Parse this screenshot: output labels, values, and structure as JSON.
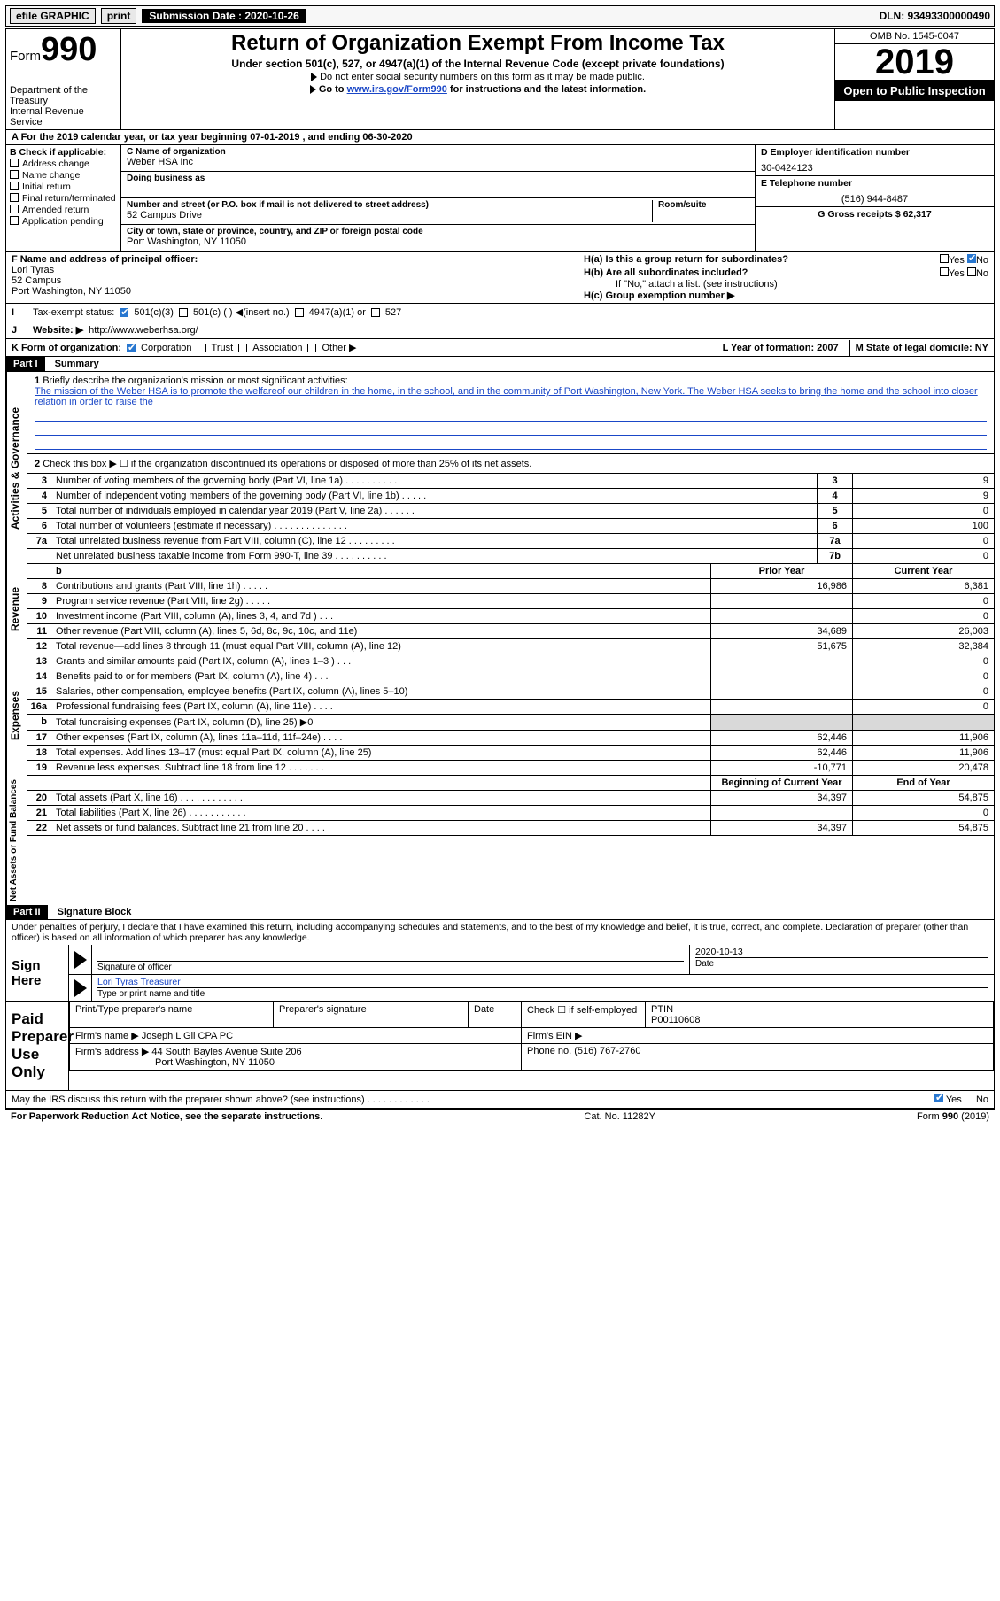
{
  "topbar": {
    "efile": "efile GRAPHIC",
    "print": "print",
    "sub_label": "Submission Date : 2020-10-26",
    "dln": "DLN: 93493300000490"
  },
  "header": {
    "form_label": "Form",
    "form_num": "990",
    "dept": "Department of the Treasury\nInternal Revenue Service",
    "title": "Return of Organization Exempt From Income Tax",
    "sub": "Under section 501(c), 527, or 4947(a)(1) of the Internal Revenue Code (except private foundations)",
    "line1": "Do not enter social security numbers on this form as it may be made public.",
    "line2_pre": "Go to ",
    "line2_link": "www.irs.gov/Form990",
    "line2_post": " for instructions and the latest information.",
    "omb": "OMB No. 1545-0047",
    "year": "2019",
    "inspect": "Open to Public Inspection"
  },
  "rowA": "A   For the 2019 calendar year, or tax year beginning 07-01-2019     , and ending 06-30-2020",
  "colB": {
    "title": "B Check if applicable:",
    "items": [
      "Address change",
      "Name change",
      "Initial return",
      "Final return/terminated",
      "Amended return",
      "Application pending"
    ]
  },
  "orgbox": {
    "c_label": "C Name of organization",
    "org": "Weber HSA Inc",
    "dba_label": "Doing business as",
    "addr_label": "Number and street (or P.O. box if mail is not delivered to street address)",
    "room_label": "Room/suite",
    "addr": "52 Campus Drive",
    "city_label": "City or town, state or province, country, and ZIP or foreign postal code",
    "city": "Port Washington, NY  11050"
  },
  "rightcol": {
    "d_label": "D Employer identification number",
    "ein": "30-0424123",
    "e_label": "E Telephone number",
    "phone": "(516) 944-8487",
    "g_label": "G Gross receipts $ 62,317"
  },
  "f_block": {
    "f_label": "F  Name and address of principal officer:",
    "name": "Lori Tyras",
    "addr1": "52 Campus",
    "addr2": "Port Washington, NY  11050"
  },
  "h_block": {
    "ha": "H(a)  Is this a group return for subordinates?",
    "hb": "H(b)  Are all subordinates included?",
    "hb_note": "If \"No,\" attach a list. (see instructions)",
    "hc": "H(c)  Group exemption number ▶",
    "yes": "Yes",
    "no": "No"
  },
  "i_row": {
    "label": "Tax-exempt status:",
    "o1": "501(c)(3)",
    "o2": "501(c) (  ) ◀(insert no.)",
    "o3": "4947(a)(1) or",
    "o4": "527"
  },
  "j_row": {
    "label": "J",
    "text": "Website: ▶",
    "val": "http://www.weberhsa.org/"
  },
  "k_row": {
    "label": "K Form of organization:",
    "o1": "Corporation",
    "o2": "Trust",
    "o3": "Association",
    "o4": "Other ▶"
  },
  "l_row": {
    "label": "L Year of formation: 2007"
  },
  "m_row": {
    "label": "M State of legal domicile: NY"
  },
  "part1": {
    "hdr": "Part I",
    "title": "Summary",
    "q1_label": "1",
    "q1": "Briefly describe the organization's mission or most significant activities:",
    "mission": "The mission of the Weber HSA is to promote the welfareof our children in the home, in the school, and in the community of Port Washington, New York. The Weber HSA seeks to bring the home and the school into closer relation in order to raise the",
    "q2_label": "2",
    "q2": "Check this box ▶ ☐  if the organization discontinued its operations or disposed of more than 25% of its net assets.",
    "rows_ag": [
      {
        "n": "3",
        "d": "Number of voting members of the governing body (Part VI, line 1a)  .  .  .  .  .  .  .  .  .  .",
        "c": "3",
        "v": "9"
      },
      {
        "n": "4",
        "d": "Number of independent voting members of the governing body (Part VI, line 1b)  .  .  .  .  .",
        "c": "4",
        "v": "9"
      },
      {
        "n": "5",
        "d": "Total number of individuals employed in calendar year 2019 (Part V, line 2a)  .  .  .  .  .  .",
        "c": "5",
        "v": "0"
      },
      {
        "n": "6",
        "d": "Total number of volunteers (estimate if necessary)   .  .  .  .  .  .  .  .  .  .  .  .  .  .",
        "c": "6",
        "v": "100"
      },
      {
        "n": "7a",
        "d": "Total unrelated business revenue from Part VIII, column (C), line 12  .  .  .  .  .  .  .  .  .",
        "c": "7a",
        "v": "0"
      },
      {
        "n": "",
        "d": "Net unrelated business taxable income from Form 990-T, line 39   .  .  .  .  .  .  .  .  .  .",
        "c": "7b",
        "v": "0"
      }
    ],
    "col_py": "Prior Year",
    "col_cy": "Current Year",
    "revenue_rows": [
      {
        "n": "8",
        "d": "Contributions and grants (Part VIII, line 1h)   .   .   .   .   .",
        "py": "16,986",
        "cy": "6,381"
      },
      {
        "n": "9",
        "d": "Program service revenue (Part VIII, line 2g)   .   .   .   .   .",
        "py": "",
        "cy": "0"
      },
      {
        "n": "10",
        "d": "Investment income (Part VIII, column (A), lines 3, 4, and 7d )   .   .   .",
        "py": "",
        "cy": "0"
      },
      {
        "n": "11",
        "d": "Other revenue (Part VIII, column (A), lines 5, 6d, 8c, 9c, 10c, and 11e)",
        "py": "34,689",
        "cy": "26,003"
      },
      {
        "n": "12",
        "d": "Total revenue—add lines 8 through 11 (must equal Part VIII, column (A), line 12)",
        "py": "51,675",
        "cy": "32,384"
      }
    ],
    "expense_rows": [
      {
        "n": "13",
        "d": "Grants and similar amounts paid (Part IX, column (A), lines 1–3 )  .   .   .",
        "py": "",
        "cy": "0"
      },
      {
        "n": "14",
        "d": "Benefits paid to or for members (Part IX, column (A), line 4)  .   .   .",
        "py": "",
        "cy": "0"
      },
      {
        "n": "15",
        "d": "Salaries, other compensation, employee benefits (Part IX, column (A), lines 5–10)",
        "py": "",
        "cy": "0"
      },
      {
        "n": "16a",
        "d": "Professional fundraising fees (Part IX, column (A), line 11e)  .   .   .   .",
        "py": "",
        "cy": "0"
      },
      {
        "n": "b",
        "d": "Total fundraising expenses (Part IX, column (D), line 25) ▶0",
        "py": "shade",
        "cy": "shade"
      },
      {
        "n": "17",
        "d": "Other expenses (Part IX, column (A), lines 11a–11d, 11f–24e)  .   .   .   .",
        "py": "62,446",
        "cy": "11,906"
      },
      {
        "n": "18",
        "d": "Total expenses. Add lines 13–17 (must equal Part IX, column (A), line 25)",
        "py": "62,446",
        "cy": "11,906"
      },
      {
        "n": "19",
        "d": "Revenue less expenses. Subtract line 18 from line 12 .  .  .  .  .  .  .",
        "py": "-10,771",
        "cy": "20,478"
      }
    ],
    "col_boy": "Beginning of Current Year",
    "col_eoy": "End of Year",
    "na_rows": [
      {
        "n": "20",
        "d": "Total assets (Part X, line 16) .   .   .   .   .   .   .   .   .   .   .   .",
        "py": "34,397",
        "cy": "54,875"
      },
      {
        "n": "21",
        "d": "Total liabilities (Part X, line 26) .   .   .   .   .   .   .   .   .   .   .",
        "py": "",
        "cy": "0"
      },
      {
        "n": "22",
        "d": "Net assets or fund balances. Subtract line 21 from line 20  .   .   .   .",
        "py": "34,397",
        "cy": "54,875"
      }
    ],
    "side_ag": "Activities & Governance",
    "side_rev": "Revenue",
    "side_exp": "Expenses",
    "side_na": "Net Assets or Fund Balances"
  },
  "part2": {
    "hdr": "Part II",
    "title": "Signature Block",
    "decl": "Under penalties of perjury, I declare that I have examined this return, including accompanying schedules and statements, and to the best of my knowledge and belief, it is true, correct, and complete. Declaration of preparer (other than officer) is based on all information of which preparer has any knowledge.",
    "sign_here": "Sign Here",
    "sig_officer_lbl": "Signature of officer",
    "date_lbl": "Date",
    "date_val": "2020-10-13",
    "name_title": "Lori Tyras  Treasurer",
    "name_title_lbl": "Type or print name and title",
    "paid_lbl": "Paid Preparer Use Only",
    "pt_name_lbl": "Print/Type preparer's name",
    "pt_sig_lbl": "Preparer's signature",
    "pt_date_lbl": "Date",
    "pt_check_lbl": "Check ☐ if self-employed",
    "ptin_lbl": "PTIN",
    "ptin": "P00110608",
    "firm_name_lbl": "Firm's name    ▶",
    "firm_name": "Joseph L Gil CPA PC",
    "firm_ein_lbl": "Firm's EIN ▶",
    "firm_addr_lbl": "Firm's address ▶",
    "firm_addr1": "44 South Bayles Avenue Suite 206",
    "firm_addr2": "Port Washington, NY  11050",
    "firm_phone_lbl": "Phone no. (516) 767-2760",
    "discuss": "May the IRS discuss this return with the preparer shown above? (see instructions)  .   .   .   .   .   .   .   .   .   .   .   .",
    "yes": "Yes",
    "no": "No"
  },
  "footer": {
    "left": "For Paperwork Reduction Act Notice, see the separate instructions.",
    "mid": "Cat. No. 11282Y",
    "right": "Form 990 (2019)"
  }
}
